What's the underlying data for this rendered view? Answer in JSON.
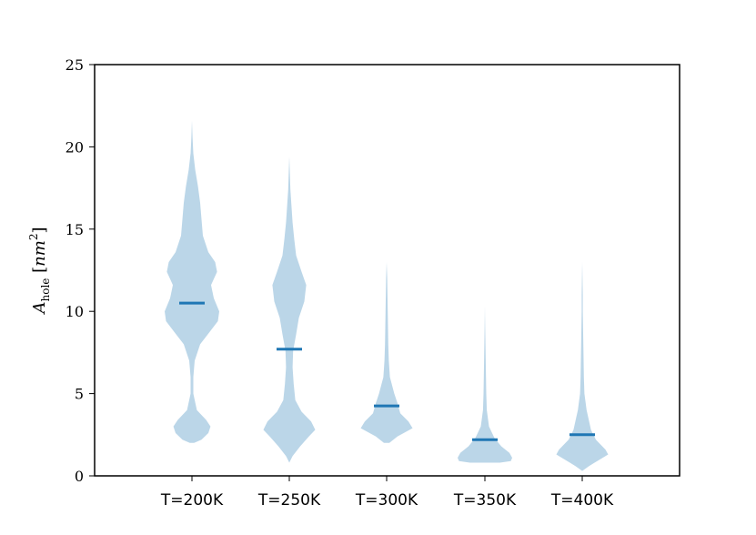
{
  "chart_data": {
    "type": "violin",
    "title": "",
    "xlabel": "",
    "ylabel": {
      "symbol": "A",
      "subscript": "hole",
      "unit_open": "[",
      "unit": "nm",
      "unit_exp": "2",
      "unit_close": "]"
    },
    "ylim": [
      0,
      25
    ],
    "yticks": [
      "0",
      "5",
      "10",
      "15",
      "20",
      "25"
    ],
    "grid": false,
    "legend": "none",
    "categories": [
      "T=200K",
      "T=250K",
      "T=300K",
      "T=350K",
      "T=400K"
    ],
    "medians": [
      10.5,
      7.7,
      4.25,
      2.2,
      2.5
    ],
    "ranges": [
      [
        2.0,
        21.6
      ],
      [
        0.8,
        19.4
      ],
      [
        2.0,
        13.0
      ],
      [
        0.8,
        10.3
      ],
      [
        0.3,
        13.0
      ]
    ],
    "density_profiles": [
      [
        [
          2.0,
          0.08
        ],
        [
          2.2,
          0.35
        ],
        [
          2.6,
          0.6
        ],
        [
          3.0,
          0.68
        ],
        [
          3.4,
          0.52
        ],
        [
          4.0,
          0.18
        ],
        [
          5.0,
          0.05
        ],
        [
          6.0,
          0.05
        ],
        [
          7.0,
          0.1
        ],
        [
          8.0,
          0.3
        ],
        [
          8.6,
          0.58
        ],
        [
          9.4,
          0.95
        ],
        [
          10.0,
          1.0
        ],
        [
          10.8,
          0.8
        ],
        [
          11.6,
          0.7
        ],
        [
          12.4,
          0.92
        ],
        [
          13.0,
          0.85
        ],
        [
          13.6,
          0.6
        ],
        [
          14.6,
          0.4
        ],
        [
          15.6,
          0.35
        ],
        [
          16.6,
          0.3
        ],
        [
          17.6,
          0.22
        ],
        [
          18.6,
          0.12
        ],
        [
          19.6,
          0.05
        ],
        [
          20.6,
          0.02
        ],
        [
          21.6,
          0.0
        ]
      ],
      [
        [
          0.8,
          0.0
        ],
        [
          1.2,
          0.12
        ],
        [
          1.8,
          0.4
        ],
        [
          2.4,
          0.72
        ],
        [
          2.8,
          0.95
        ],
        [
          3.3,
          0.8
        ],
        [
          3.9,
          0.45
        ],
        [
          4.6,
          0.22
        ],
        [
          5.6,
          0.16
        ],
        [
          6.6,
          0.12
        ],
        [
          7.6,
          0.14
        ],
        [
          8.6,
          0.25
        ],
        [
          9.6,
          0.35
        ],
        [
          10.6,
          0.55
        ],
        [
          11.6,
          0.62
        ],
        [
          12.4,
          0.45
        ],
        [
          13.4,
          0.25
        ],
        [
          14.4,
          0.18
        ],
        [
          15.4,
          0.12
        ],
        [
          16.4,
          0.08
        ],
        [
          17.4,
          0.04
        ],
        [
          18.4,
          0.02
        ],
        [
          19.4,
          0.0
        ]
      ],
      [
        [
          2.0,
          0.1
        ],
        [
          2.4,
          0.4
        ],
        [
          2.9,
          0.95
        ],
        [
          3.3,
          0.8
        ],
        [
          3.8,
          0.5
        ],
        [
          4.4,
          0.4
        ],
        [
          5.0,
          0.28
        ],
        [
          6.0,
          0.12
        ],
        [
          7.0,
          0.08
        ],
        [
          8.0,
          0.06
        ],
        [
          9.0,
          0.05
        ],
        [
          10.0,
          0.04
        ],
        [
          11.0,
          0.03
        ],
        [
          12.0,
          0.02
        ],
        [
          13.0,
          0.0
        ]
      ],
      [
        [
          0.8,
          0.55
        ],
        [
          0.9,
          0.95
        ],
        [
          1.1,
          1.0
        ],
        [
          1.4,
          0.9
        ],
        [
          1.8,
          0.6
        ],
        [
          2.3,
          0.35
        ],
        [
          3.0,
          0.15
        ],
        [
          4.0,
          0.07
        ],
        [
          5.0,
          0.05
        ],
        [
          6.0,
          0.04
        ],
        [
          7.0,
          0.03
        ],
        [
          8.0,
          0.02
        ],
        [
          9.0,
          0.01
        ],
        [
          10.3,
          0.0
        ]
      ],
      [
        [
          0.3,
          0.0
        ],
        [
          0.6,
          0.25
        ],
        [
          0.9,
          0.55
        ],
        [
          1.3,
          0.95
        ],
        [
          1.6,
          0.85
        ],
        [
          2.2,
          0.5
        ],
        [
          2.8,
          0.32
        ],
        [
          3.4,
          0.24
        ],
        [
          4.0,
          0.16
        ],
        [
          5.0,
          0.08
        ],
        [
          6.0,
          0.06
        ],
        [
          7.0,
          0.05
        ],
        [
          8.0,
          0.04
        ],
        [
          9.0,
          0.03
        ],
        [
          10.0,
          0.02
        ],
        [
          11.0,
          0.02
        ],
        [
          12.0,
          0.01
        ],
        [
          13.0,
          0.0
        ]
      ]
    ],
    "colors": {
      "body": "#1f77b4",
      "median": "#1f77b4",
      "axes": "#000000"
    }
  }
}
